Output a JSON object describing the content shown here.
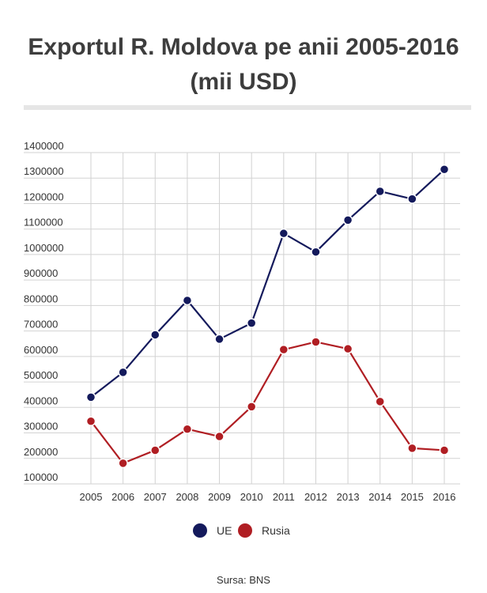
{
  "title_line1": "Exportul R. Moldova pe anii 2005-2016",
  "title_line2": "(mii USD)",
  "source": "Sursa: BNS",
  "chart_data": {
    "type": "line",
    "title": "Exportul R. Moldova pe anii 2005-2016 (mii USD)",
    "x": [
      "2005",
      "2006",
      "2007",
      "2008",
      "2009",
      "2010",
      "2011",
      "2012",
      "2013",
      "2014",
      "2015",
      "2016"
    ],
    "ylim": [
      100000,
      1400000
    ],
    "yticks": [
      1400000,
      1300000,
      1200000,
      1100000,
      1000000,
      900000,
      800000,
      700000,
      600000,
      500000,
      400000,
      300000,
      200000,
      100000
    ],
    "grid": true,
    "legend_position": "bottom-center",
    "series": [
      {
        "name": "UE",
        "color": "#141a5c",
        "values": [
          440000,
          538000,
          685000,
          820000,
          668000,
          731000,
          1083000,
          1010000,
          1135000,
          1248000,
          1218000,
          1334000
        ]
      },
      {
        "name": "Rusia",
        "color": "#b01e23",
        "values": [
          346000,
          181000,
          232000,
          315000,
          286000,
          403000,
          627000,
          657000,
          630000,
          423000,
          240000,
          232000
        ]
      }
    ]
  }
}
